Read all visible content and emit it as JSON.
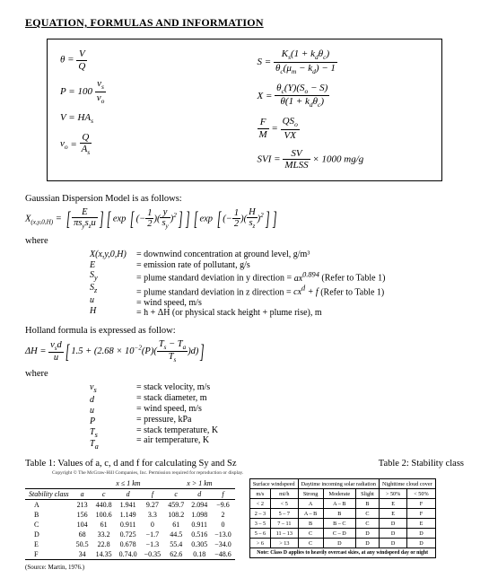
{
  "title": "EQUATION, FORMULAS AND INFORMATION",
  "left_formulas_html": [
    "<i>θ</i> = <span class='frac'><span>V</span><span class='den'>Q</span></span>",
    "<i>P</i> = 100 <span class='frac'><span>v<span class='sub'>s</span></span><span class='den'>v<span class='sub'>o</span></span></span>",
    "<i>V</i> = <i>HA<span class='sub'>s</span></i>",
    "<i>v<span class='sub'>o</span></i> = <span class='frac'><span>Q</span><span class='den'>A<span class='sub'>s</span></span></span>"
  ],
  "right_formulas_html": [
    "<i>S</i> = <span class='frac'><span>K<span class='sub'>s</span>(1 + k<span class='sub'>d</span>θ<span class='sub'>c</span>)</span><span class='den'>θ<span class='sub'>c</span>(μ<span class='sub'>m</span> − k<span class='sub'>d</span>) − 1</span></span>",
    "<i>X</i> = <span class='frac'><span>θ<span class='sub'>c</span>(Y)(S<span class='sub'>o</span> − S)</span><span class='den'>θ(1 + k<span class='sub'>d</span>θ<span class='sub'>c</span>)</span></span>",
    "<span class='frac'><span>F</span><span class='den'>M</span></span> = <span class='frac'><span>QS<span class='sub'>o</span></span><span class='den'>VX</span></span>",
    "<i>SVI</i> = <span class='frac'><span>SV</span><span class='den'>MLSS</span></span> × 1000 <i>mg/g</i>"
  ],
  "gauss_intro": "Gaussian Dispersion Model is as follows:",
  "gauss_eq_html": "X<span class='sub'>(x,y,0,H)</span> = <span class='bigbracket'>[</span><span class='frac'><span>E</span><span class='den'>πs<span class='sub'>y</span>s<span class='sub'>z</span>u</span></span><span class='bigbracket'>]</span><span class='bigbracket'>[</span>exp <span class='bigbracket'>[</span>(−<span class='frac'><span>1</span><span class='den'>2</span></span>)(<span class='frac'><span>y</span><span class='den'>s<span class='sub'>y</span></span></span>)<span class='sup'>2</span><span class='bigbracket'>]</span><span class='bigbracket'>]</span><span class='bigbracket'>[</span>exp <span class='bigbracket'>[</span>(−<span class='frac'><span>1</span><span class='den'>2</span></span>)(<span class='frac'><span>H</span><span class='den'>s<span class='sub'>z</span></span></span>)<span class='sup'>2</span><span class='bigbracket'>]</span><span class='bigbracket'>]</span>",
  "where_label": "where",
  "gauss_where": [
    {
      "sym": "X(x,y,0,H)",
      "def": "= downwind concentration at ground level, g/m³"
    },
    {
      "sym": "E",
      "def": "= emission rate of pollutant, g/s"
    },
    {
      "sym": "S<sub>y</sub>",
      "def": "= plume standard deviation in y direction = <i>ax<sup>0.894</sup></i> (Refer to Table 1)"
    },
    {
      "sym": "S<sub>z</sub>",
      "def": "= plume standard deviation in z direction = <i>cx<sup>d</sup> + f</i> (Refer to Table 1)"
    },
    {
      "sym": "u",
      "def": "= wind speed, m/s"
    },
    {
      "sym": "H",
      "def": "= h + ΔH (or physical stack height + plume rise), m"
    }
  ],
  "holland_intro": "Holland formula is expressed as follow:",
  "holland_eq_html": "ΔH = <span class='frac'><span>v<span class='sub'>s</span>d</span><span class='den'>u</span></span><span class='bigbracket'>[</span>1.5 + (2.68 × 10<span class='sup'>−2</span>(P)(<span class='frac'><span>T<span class='sub'>s</span> − T<span class='sub'>a</span></span><span class='den'>T<span class='sub'>s</span></span></span>)d)<span class='bigbracket'>]</span>",
  "holland_where": [
    {
      "sym": "v<sub>s</sub>",
      "def": "= stack velocity, m/s"
    },
    {
      "sym": "d",
      "def": "= stack diameter, m"
    },
    {
      "sym": "u",
      "def": "= wind speed, m/s"
    },
    {
      "sym": "P",
      "def": "= pressure, kPa"
    },
    {
      "sym": "T<sub>s</sub>",
      "def": "= stack temperature, K"
    },
    {
      "sym": "T<sub>a</sub>",
      "def": "= air temperature, K"
    }
  ],
  "table1_caption": "Table 1: Values of a, c, d and f for calculating Sy and Sz",
  "table2_caption": "Table 2: Stability class",
  "copyright": "Copyright © The McGraw-Hill Companies, Inc. Permission required for reproduction or display.",
  "table1": {
    "group1": "x ≤ 1 km",
    "group2": "x > 1 km",
    "headers": [
      "Stability class",
      "a",
      "c",
      "d",
      "f",
      "c",
      "d",
      "f"
    ],
    "rows": [
      [
        "A",
        "213",
        "440.8",
        "1.941",
        "9.27",
        "459.7",
        "2.094",
        "−9.6"
      ],
      [
        "B",
        "156",
        "100.6",
        "1.149",
        "3.3",
        "108.2",
        "1.098",
        "2"
      ],
      [
        "C",
        "104",
        "61",
        "0.911",
        "0",
        "61",
        "0.911",
        "0"
      ],
      [
        "D",
        "68",
        "33.2",
        "0.725",
        "−1.7",
        "44.5",
        "0.516",
        "−13.0"
      ],
      [
        "E",
        "50.5",
        "22.8",
        "0.678",
        "−1.3",
        "55.4",
        "0.305",
        "−34.0"
      ],
      [
        "F",
        "34",
        "14.35",
        "0.74.0",
        "−0.35",
        "62.6",
        "0.18",
        "−48.6"
      ]
    ]
  },
  "table2": {
    "head1": [
      "Surface windspeed",
      "Daytime incoming solar radiation",
      "Nighttime cloud cover"
    ],
    "head2": [
      "m/s",
      "mi/h",
      "Strong",
      "Moderate",
      "Slight",
      "> 50%",
      "< 50%"
    ],
    "rows": [
      [
        "< 2",
        "< 5",
        "A",
        "A – B",
        "B",
        "E",
        "F"
      ],
      [
        "2 – 3",
        "5 – 7",
        "A – B",
        "B",
        "C",
        "E",
        "F"
      ],
      [
        "3 – 5",
        "7 – 11",
        "B",
        "B – C",
        "C",
        "D",
        "E"
      ],
      [
        "5 – 6",
        "11 – 13",
        "C",
        "C – D",
        "D",
        "D",
        "D"
      ],
      [
        "> 6",
        "> 13",
        "C",
        "D",
        "D",
        "D",
        "D"
      ]
    ],
    "note": "Note: Class D applies to heavily overcast skies, at any windspeed day or night"
  },
  "source": "(Source: Martin, 1976.)"
}
